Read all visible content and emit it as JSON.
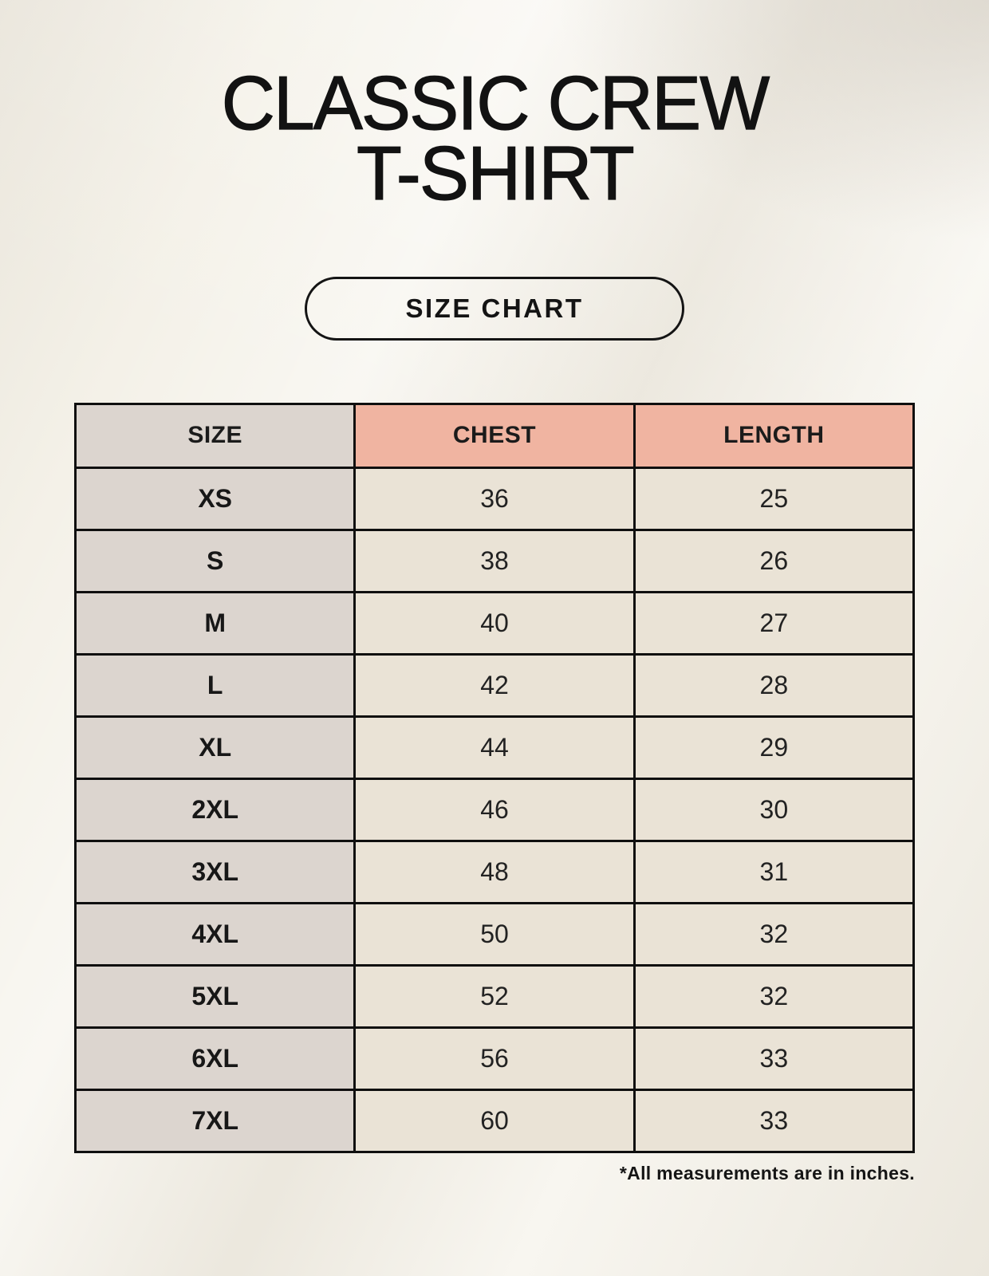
{
  "header": {
    "title_line1": "CLASSIC CREW",
    "title_line2": "T-SHIRT"
  },
  "badge": {
    "label": "SIZE CHART"
  },
  "size_table": {
    "columns": [
      "SIZE",
      "CHEST",
      "LENGTH"
    ],
    "rows": [
      {
        "size": "XS",
        "chest": "36",
        "length": "25"
      },
      {
        "size": "S",
        "chest": "38",
        "length": "26"
      },
      {
        "size": "M",
        "chest": "40",
        "length": "27"
      },
      {
        "size": "L",
        "chest": "42",
        "length": "28"
      },
      {
        "size": "XL",
        "chest": "44",
        "length": "29"
      },
      {
        "size": "2XL",
        "chest": "46",
        "length": "30"
      },
      {
        "size": "3XL",
        "chest": "48",
        "length": "31"
      },
      {
        "size": "4XL",
        "chest": "50",
        "length": "32"
      },
      {
        "size": "5XL",
        "chest": "52",
        "length": "32"
      },
      {
        "size": "6XL",
        "chest": "56",
        "length": "33"
      },
      {
        "size": "7XL",
        "chest": "60",
        "length": "33"
      }
    ],
    "footnote": "*All measurements are in inches."
  },
  "colors": {
    "page_background": "#f4f1e8",
    "header_accent": "#f0b4a1",
    "size_column": "#dcd5cf",
    "data_cell": "#eae3d6",
    "table_border": "#0f0f0f",
    "text": "#171717"
  },
  "chart_data": {
    "type": "table",
    "title": "CLASSIC CREW T-SHIRT size chart",
    "units": "inches",
    "columns": [
      "SIZE",
      "CHEST",
      "LENGTH"
    ],
    "rows": [
      [
        "XS",
        36,
        25
      ],
      [
        "S",
        38,
        26
      ],
      [
        "M",
        40,
        27
      ],
      [
        "L",
        42,
        28
      ],
      [
        "XL",
        44,
        29
      ],
      [
        "2XL",
        46,
        30
      ],
      [
        "3XL",
        48,
        31
      ],
      [
        "4XL",
        50,
        32
      ],
      [
        "5XL",
        52,
        32
      ],
      [
        "6XL",
        56,
        33
      ],
      [
        "7XL",
        60,
        33
      ]
    ]
  }
}
